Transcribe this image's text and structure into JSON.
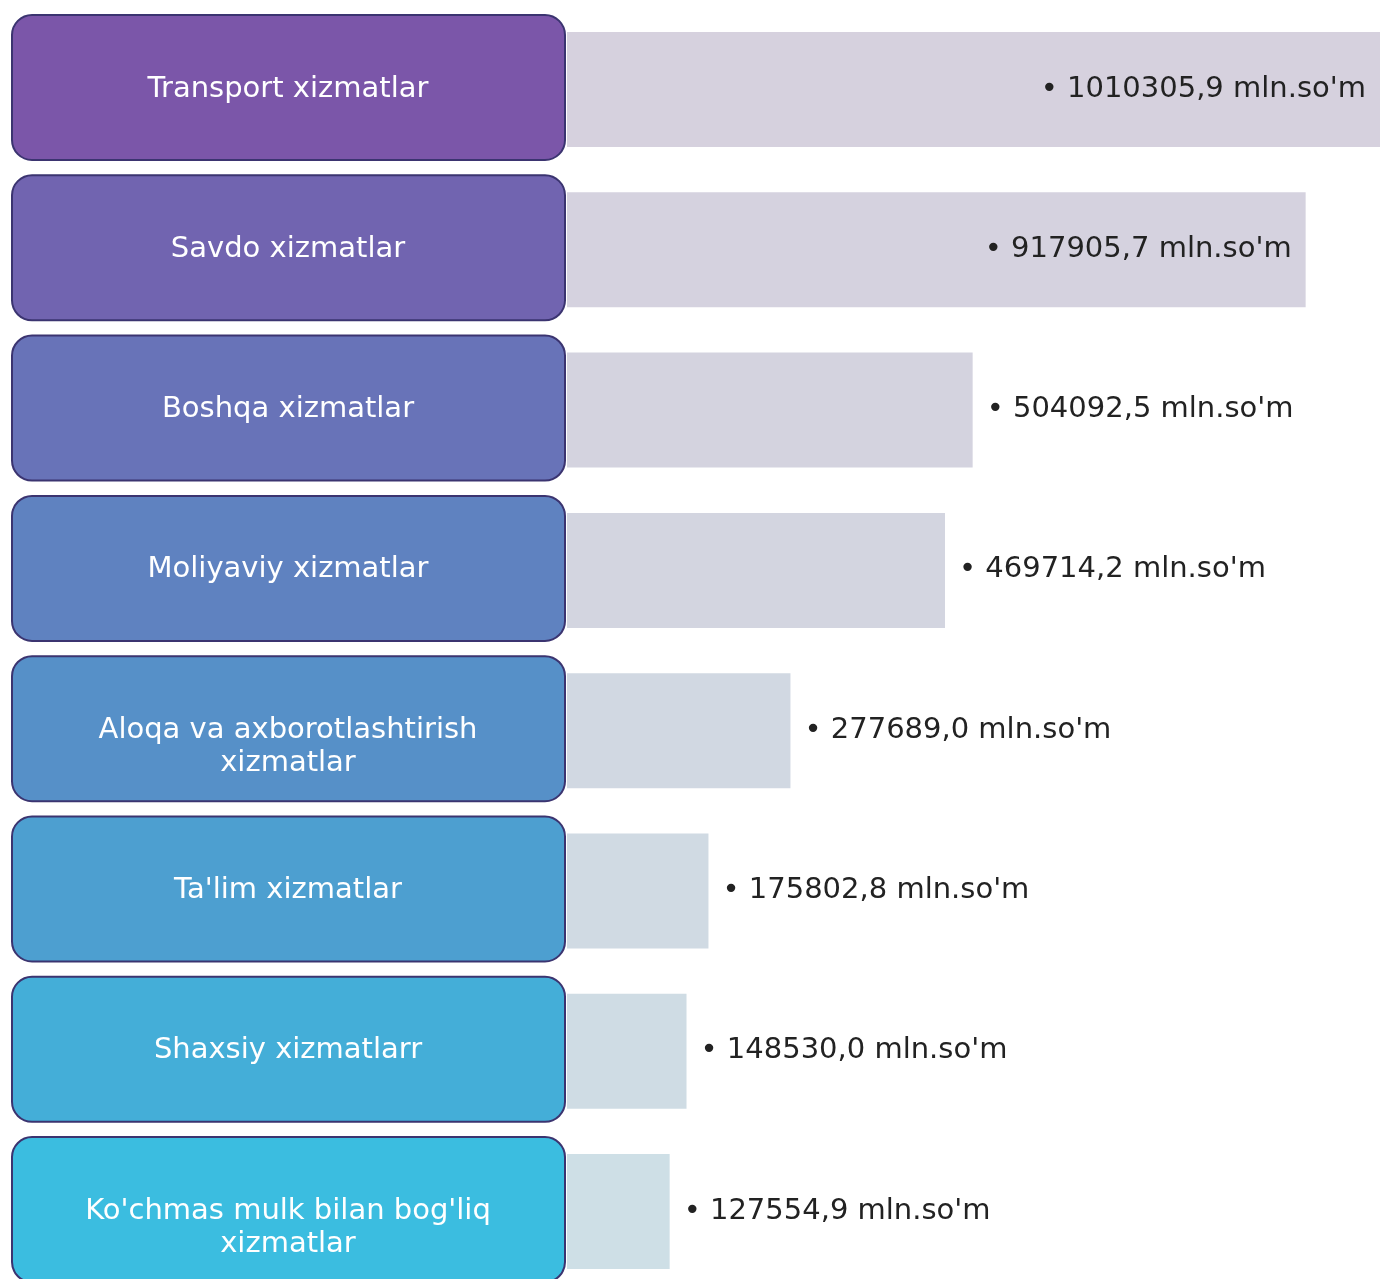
{
  "chart_data": {
    "type": "bar",
    "orientation": "horizontal",
    "categories": [
      "Transport xizmatlar",
      "Savdo xizmatlar",
      "Boshqa xizmatlar",
      "Moliyaviy xizmatlar",
      "Aloqa va axborotlashtirish xizmatlar",
      "Ta'lim xizmatlar",
      "Shaxsiy xizmatlarr",
      "Ko'chmas mulk bilan bog'liq xizmatlar"
    ],
    "values": [
      1010305.9,
      917905.7,
      504092.5,
      469714.2,
      277689.0,
      175802.8,
      148530.0,
      127554.9
    ],
    "value_labels": [
      "• 1010305,9 mln.so'm",
      "• 917905,7 mln.so'm",
      "• 504092,5 mln.so'm",
      "• 469714,2 mln.so'm",
      "• 277689,0 mln.so'm",
      "• 175802,8 mln.so'm",
      "• 148530,0 mln.so'm",
      "• 127554,9 mln.so'm"
    ],
    "colors": [
      "#d6d1de",
      "#d5d2df",
      "#d4d3df",
      "#d3d5e0",
      "#d1d8e2",
      "#d0dae3",
      "#cfdce4",
      "#cedfe6"
    ]
  }
}
